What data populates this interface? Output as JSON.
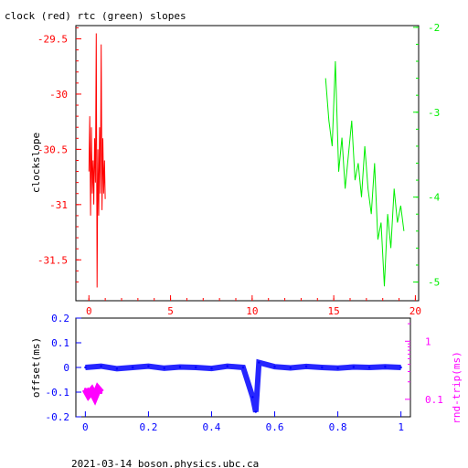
{
  "title": "clock (red) rtc (green) slopes",
  "footer": "2021-03-14 boson.physics.ubc.ca",
  "colors": {
    "clock": "#ff0000",
    "rtc": "#00ee00",
    "offset": "#0000ff",
    "roundtrip": "#ff00ff",
    "axis": "#000000"
  },
  "chart_data": [
    {
      "type": "line",
      "title": "clock (red) rtc (green) slopes",
      "ylabel": "clockslope",
      "xlim": [
        -0.8,
        20.2
      ],
      "ylim": [
        -31.87,
        -29.38
      ],
      "x_ticks": [
        0,
        5,
        10,
        15,
        20
      ],
      "x_tick_labels": [
        "0",
        "5",
        "10",
        "15",
        "20"
      ],
      "y_ticks": [
        -29.5,
        -30,
        -30.5,
        -31,
        -31.5
      ],
      "y_tick_labels": [
        "-29.5",
        "-30",
        "-30.5",
        "-31",
        "-31.5"
      ],
      "y2lim": [
        -5.22,
        -1.98
      ],
      "y2_ticks": [
        -2,
        -3,
        -4,
        -5
      ],
      "y2_tick_labels": [
        "-2",
        "-3",
        "-4",
        "-5"
      ],
      "grid": false,
      "series": [
        {
          "axis": "left",
          "x": [
            0.0,
            0.05,
            0.1,
            0.15,
            0.2,
            0.25,
            0.3,
            0.35,
            0.4,
            0.45,
            0.5,
            0.55,
            0.6,
            0.65,
            0.7,
            0.75,
            0.8,
            0.85,
            0.9,
            0.95,
            1.0
          ],
          "values": [
            -30.7,
            -30.2,
            -31.1,
            -30.3,
            -30.9,
            -30.6,
            -31.0,
            -30.4,
            -30.8,
            -29.45,
            -31.75,
            -30.5,
            -31.1,
            -30.3,
            -30.9,
            -29.55,
            -31.05,
            -30.4,
            -30.9,
            -30.6,
            -30.95
          ]
        },
        {
          "axis": "right",
          "x": [
            14.5,
            14.7,
            14.9,
            15.1,
            15.3,
            15.5,
            15.7,
            15.9,
            16.1,
            16.3,
            16.5,
            16.7,
            16.9,
            17.1,
            17.3,
            17.5,
            17.7,
            17.9,
            18.1,
            18.3,
            18.5,
            18.7,
            18.9,
            19.1,
            19.3
          ],
          "values": [
            -2.6,
            -3.1,
            -3.4,
            -2.4,
            -3.7,
            -3.3,
            -3.9,
            -3.5,
            -3.1,
            -3.8,
            -3.6,
            -4.0,
            -3.4,
            -3.9,
            -4.2,
            -3.6,
            -4.5,
            -4.3,
            -5.05,
            -4.2,
            -4.6,
            -3.9,
            -4.3,
            -4.1,
            -4.4
          ]
        }
      ]
    },
    {
      "type": "scatter",
      "ylabel": "offset(ms)",
      "y2label": "rnd-trip(ms)",
      "xlim": [
        -0.03,
        1.03
      ],
      "ylim": [
        -0.2,
        0.2
      ],
      "x_ticks": [
        0,
        0.2,
        0.4,
        0.6,
        0.8,
        1
      ],
      "x_tick_labels": [
        "0",
        "0.2",
        "0.4",
        "0.6",
        "0.8",
        "1"
      ],
      "y_ticks": [
        0.2,
        0.1,
        0,
        -0.1,
        -0.2
      ],
      "y_tick_labels": [
        "0.2",
        "0.1",
        "0",
        "-0.1",
        "-0.2"
      ],
      "y2_scale": "log",
      "y2_ticks": [
        1,
        0.1
      ],
      "y2_tick_labels": [
        "1",
        "0.1"
      ],
      "grid": false,
      "series": [
        {
          "axis": "left",
          "x": [
            0.0,
            0.05,
            0.1,
            0.15,
            0.2,
            0.25,
            0.3,
            0.35,
            0.4,
            0.45,
            0.5,
            0.53,
            0.54,
            0.55,
            0.6,
            0.65,
            0.7,
            0.75,
            0.8,
            0.85,
            0.9,
            0.95,
            1.0
          ],
          "values": [
            0.0,
            0.005,
            -0.005,
            0.0,
            0.005,
            -0.003,
            0.002,
            0.0,
            -0.004,
            0.005,
            0.0,
            -0.12,
            -0.18,
            0.02,
            0.003,
            -0.002,
            0.004,
            0.0,
            -0.003,
            0.002,
            0.0,
            0.003,
            0.0
          ]
        },
        {
          "axis": "right",
          "x": [
            0.0,
            0.01,
            0.02,
            0.03,
            0.04,
            0.05
          ],
          "values": [
            0.15,
            0.12,
            0.14,
            0.11,
            0.15,
            0.13
          ]
        }
      ]
    }
  ]
}
